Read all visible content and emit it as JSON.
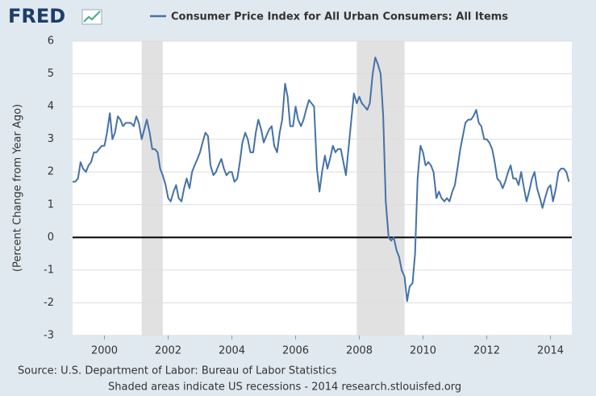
{
  "chart_data": {
    "type": "line",
    "logo": "FRED",
    "ylabel": "(Percent Change from Year Ago)",
    "source": "Source: U.S. Department of Labor: Bureau of Labor Statistics",
    "note": "Shaded areas indicate US recessions - 2014 research.stlouisfed.org",
    "xlim": [
      1999,
      2014.67
    ],
    "xticks": [
      2000,
      2002,
      2004,
      2006,
      2008,
      2010,
      2012,
      2014
    ],
    "ylim": [
      -3,
      6
    ],
    "yticks": [
      -3,
      -2,
      -1,
      0,
      1,
      2,
      3,
      4,
      5,
      6
    ],
    "grid": true,
    "baseline": 0,
    "recessions": [
      [
        2001.17,
        2001.83
      ],
      [
        2007.92,
        2009.42
      ]
    ],
    "x": [
      1999.0,
      1999.08,
      1999.17,
      1999.25,
      1999.33,
      1999.42,
      1999.5,
      1999.58,
      1999.67,
      1999.75,
      1999.83,
      1999.92,
      2000.0,
      2000.08,
      2000.17,
      2000.25,
      2000.33,
      2000.42,
      2000.5,
      2000.58,
      2000.67,
      2000.75,
      2000.83,
      2000.92,
      2001.0,
      2001.08,
      2001.17,
      2001.25,
      2001.33,
      2001.42,
      2001.5,
      2001.58,
      2001.67,
      2001.75,
      2001.83,
      2001.92,
      2002.0,
      2002.08,
      2002.17,
      2002.25,
      2002.33,
      2002.42,
      2002.5,
      2002.58,
      2002.67,
      2002.75,
      2002.83,
      2002.92,
      2003.0,
      2003.08,
      2003.17,
      2003.25,
      2003.33,
      2003.42,
      2003.5,
      2003.58,
      2003.67,
      2003.75,
      2003.83,
      2003.92,
      2004.0,
      2004.08,
      2004.17,
      2004.25,
      2004.33,
      2004.42,
      2004.5,
      2004.58,
      2004.67,
      2004.75,
      2004.83,
      2004.92,
      2005.0,
      2005.08,
      2005.17,
      2005.25,
      2005.33,
      2005.42,
      2005.5,
      2005.58,
      2005.67,
      2005.75,
      2005.83,
      2005.92,
      2006.0,
      2006.08,
      2006.17,
      2006.25,
      2006.33,
      2006.42,
      2006.5,
      2006.58,
      2006.67,
      2006.75,
      2006.83,
      2006.92,
      2007.0,
      2007.08,
      2007.17,
      2007.25,
      2007.33,
      2007.42,
      2007.5,
      2007.58,
      2007.67,
      2007.75,
      2007.83,
      2007.92,
      2008.0,
      2008.08,
      2008.17,
      2008.25,
      2008.33,
      2008.42,
      2008.5,
      2008.58,
      2008.67,
      2008.75,
      2008.83,
      2008.92,
      2009.0,
      2009.08,
      2009.17,
      2009.25,
      2009.33,
      2009.42,
      2009.5,
      2009.58,
      2009.67,
      2009.75,
      2009.83,
      2009.92,
      2010.0,
      2010.08,
      2010.17,
      2010.25,
      2010.33,
      2010.42,
      2010.5,
      2010.58,
      2010.67,
      2010.75,
      2010.83,
      2010.92,
      2011.0,
      2011.08,
      2011.17,
      2011.25,
      2011.33,
      2011.42,
      2011.5,
      2011.58,
      2011.67,
      2011.75,
      2011.83,
      2011.92,
      2012.0,
      2012.08,
      2012.17,
      2012.25,
      2012.33,
      2012.42,
      2012.5,
      2012.58,
      2012.67,
      2012.75,
      2012.83,
      2012.92,
      2013.0,
      2013.08,
      2013.17,
      2013.25,
      2013.33,
      2013.42,
      2013.5,
      2013.58,
      2013.67,
      2013.75,
      2013.83,
      2013.92,
      2014.0,
      2014.08,
      2014.17,
      2014.25,
      2014.33,
      2014.42,
      2014.5,
      2014.58
    ],
    "series": [
      {
        "name": "Consumer Price Index for All Urban Consumers: All Items",
        "color": "#4572a7",
        "values": [
          1.7,
          1.7,
          1.8,
          2.3,
          2.1,
          2.0,
          2.2,
          2.3,
          2.6,
          2.6,
          2.7,
          2.8,
          2.8,
          3.2,
          3.8,
          3.0,
          3.2,
          3.7,
          3.6,
          3.4,
          3.5,
          3.5,
          3.5,
          3.4,
          3.7,
          3.5,
          3.0,
          3.3,
          3.6,
          3.2,
          2.7,
          2.7,
          2.6,
          2.1,
          1.9,
          1.6,
          1.2,
          1.1,
          1.4,
          1.6,
          1.2,
          1.1,
          1.5,
          1.8,
          1.5,
          2.0,
          2.2,
          2.4,
          2.6,
          2.9,
          3.2,
          3.1,
          2.2,
          1.9,
          2.0,
          2.2,
          2.4,
          2.1,
          1.9,
          2.0,
          2.0,
          1.7,
          1.8,
          2.3,
          2.9,
          3.2,
          3.0,
          2.6,
          2.6,
          3.2,
          3.6,
          3.3,
          2.9,
          3.1,
          3.3,
          3.4,
          2.8,
          2.6,
          3.2,
          3.6,
          4.7,
          4.3,
          3.4,
          3.4,
          4.0,
          3.6,
          3.4,
          3.6,
          3.9,
          4.2,
          4.1,
          4.0,
          2.1,
          1.4,
          2.0,
          2.5,
          2.1,
          2.4,
          2.8,
          2.6,
          2.7,
          2.7,
          2.3,
          1.9,
          2.8,
          3.6,
          4.4,
          4.1,
          4.3,
          4.1,
          4.0,
          3.9,
          4.1,
          5.0,
          5.5,
          5.3,
          5.0,
          3.7,
          1.1,
          0.0,
          -0.1,
          0.0,
          -0.4,
          -0.6,
          -1.0,
          -1.2,
          -1.95,
          -1.5,
          -1.4,
          -0.5,
          1.8,
          2.8,
          2.6,
          2.2,
          2.3,
          2.2,
          2.0,
          1.2,
          1.4,
          1.2,
          1.1,
          1.2,
          1.1,
          1.4,
          1.6,
          2.1,
          2.7,
          3.1,
          3.5,
          3.6,
          3.6,
          3.7,
          3.9,
          3.5,
          3.4,
          3.0,
          3.0,
          2.9,
          2.7,
          2.3,
          1.8,
          1.7,
          1.5,
          1.7,
          2.0,
          2.2,
          1.8,
          1.8,
          1.6,
          2.0,
          1.5,
          1.1,
          1.4,
          1.8,
          2.0,
          1.5,
          1.2,
          0.9,
          1.2,
          1.5,
          1.6,
          1.1,
          1.5,
          2.0,
          2.1,
          2.1,
          2.0,
          1.7
        ]
      }
    ]
  }
}
